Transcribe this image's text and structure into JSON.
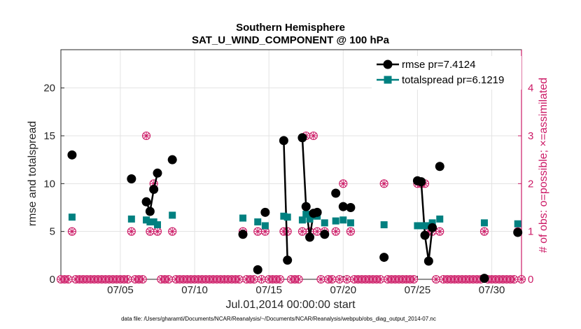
{
  "chart_data": {
    "type": "line",
    "title": "Southern Hemisphere",
    "subtitle": "SAT_U_WIND_COMPONENT @ 100 hPa",
    "xlabel": "Jul.01,2014 00:00:00 start",
    "ylabel": "rmse and totalspread",
    "y2label": "# of obs: o=possible; ×=assimilated",
    "footnote": "data file: /Users/gharamti/Documents/NCAR/Reanalysis/~/Documents/NCAR/Reanalysis/webpub/obs_diag_output_2014-07.nc",
    "xlim": [
      1,
      32
    ],
    "ylim": [
      0,
      24
    ],
    "y2lim": [
      0,
      4.8
    ],
    "x_ticks": [
      5,
      10,
      15,
      20,
      25,
      30
    ],
    "x_tick_labels": [
      "07/05",
      "07/10",
      "07/15",
      "07/20",
      "07/25",
      "07/30"
    ],
    "y_ticks": [
      0,
      5,
      10,
      15,
      20
    ],
    "y_tick_labels": [
      "0",
      "5",
      "10",
      "15",
      "20"
    ],
    "y2_ticks": [
      0,
      1,
      2,
      3,
      4
    ],
    "y2_tick_labels": [
      "0",
      "1",
      "2",
      "3",
      "4"
    ],
    "legend_position": "top-right",
    "colors": {
      "rmse": "#000000",
      "totalspread": "#008080",
      "obs": "#cc1a66",
      "grid": "#e3e3e3"
    },
    "series": [
      {
        "name": "rmse",
        "label": "rmse pr=7.4124",
        "x": [
          1.75,
          5.75,
          6.75,
          7.0,
          7.25,
          7.5,
          8.5,
          13.25,
          14.25,
          14.75,
          16.0,
          16.25,
          17.25,
          17.5,
          17.75,
          18.0,
          18.25,
          18.75,
          19.5,
          20.0,
          20.5,
          22.75,
          25.0,
          25.25,
          25.5,
          25.75,
          26.0,
          26.5,
          29.5,
          31.75
        ],
        "values": [
          13.0,
          10.5,
          8.1,
          7.1,
          9.4,
          11.1,
          12.5,
          4.7,
          1.0,
          7.0,
          14.5,
          2.0,
          14.8,
          7.6,
          4.4,
          6.9,
          7.0,
          4.7,
          9.0,
          7.6,
          7.5,
          2.3,
          10.3,
          10.2,
          4.6,
          1.9,
          5.4,
          11.8,
          0.1,
          4.9
        ],
        "connected_segments": [
          [
            6.75,
            7.0,
            7.25,
            7.5
          ],
          [
            16.0,
            16.25
          ],
          [
            17.25,
            17.5,
            17.75,
            18.0,
            18.25
          ],
          [
            25.0,
            25.25,
            25.5,
            25.75,
            26.0
          ]
        ]
      },
      {
        "name": "totalspread",
        "label": "totalspread pr=6.1219",
        "x": [
          1.75,
          5.75,
          6.75,
          7.0,
          7.25,
          7.5,
          8.5,
          13.25,
          14.25,
          14.75,
          16.0,
          16.25,
          17.25,
          17.5,
          17.75,
          18.0,
          18.25,
          18.75,
          19.5,
          20.0,
          20.5,
          22.75,
          25.0,
          25.25,
          25.5,
          25.75,
          26.0,
          26.5,
          29.5,
          31.75
        ],
        "values": [
          6.5,
          6.3,
          6.2,
          6.0,
          6.0,
          5.7,
          6.7,
          6.4,
          6.0,
          5.6,
          6.6,
          6.5,
          6.2,
          6.8,
          6.3,
          6.7,
          6.6,
          5.9,
          6.1,
          6.2,
          5.9,
          5.7,
          5.6,
          5.6,
          5.6,
          5.6,
          5.9,
          6.3,
          5.9,
          5.8
        ]
      },
      {
        "name": "obs_possible",
        "axis": "right",
        "x_nonzero": [
          1.75,
          5.75,
          6.75,
          7.0,
          7.25,
          7.5,
          8.5,
          13.25,
          14.25,
          14.75,
          16.0,
          16.25,
          17.25,
          17.5,
          17.75,
          18.0,
          18.25,
          18.75,
          19.5,
          20.0,
          20.5,
          22.75,
          25.0,
          25.25,
          25.5,
          25.75,
          26.0,
          26.5,
          29.5,
          31.75
        ],
        "values_nonzero": [
          1,
          1,
          3,
          1,
          2,
          1,
          1,
          1,
          1,
          1,
          1,
          1,
          1,
          3,
          1,
          3,
          1,
          1,
          1,
          2,
          1,
          2,
          2,
          2,
          2,
          1,
          1,
          1,
          1,
          1
        ],
        "zero_baseline_step": 0.25
      }
    ]
  }
}
